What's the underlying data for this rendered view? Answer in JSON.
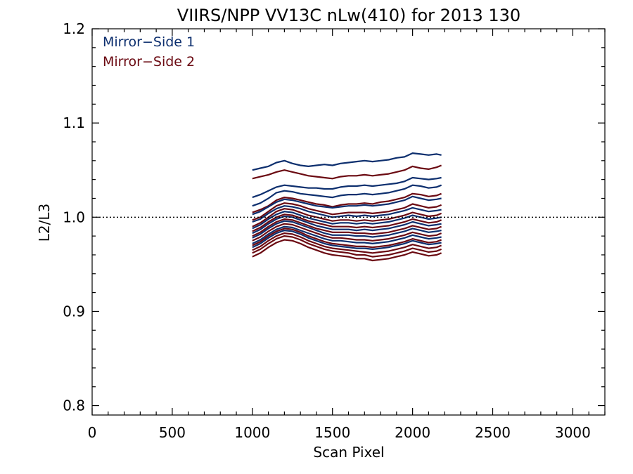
{
  "chart_data": {
    "type": "line",
    "title": "VIIRS/NPP VV13C nLw(410) for 2013 130",
    "xlabel": "Scan Pixel",
    "ylabel": "L2/L3",
    "xlim": [
      0,
      3200
    ],
    "ylim": [
      0.79,
      1.2
    ],
    "x_ticks": [
      "0",
      "500",
      "1000",
      "1500",
      "2000",
      "2500",
      "3000"
    ],
    "y_ticks": [
      "0.8",
      "0.9",
      "1.0",
      "1.1",
      "1.2"
    ],
    "reference_line": {
      "y": 1.0,
      "style": "dotted"
    },
    "legend": {
      "placement": "top-left",
      "entries": [
        {
          "label": "Mirror−Side 1",
          "color": "#0d2f6e"
        },
        {
          "label": "Mirror−Side 2",
          "color": "#6b0a12"
        }
      ]
    },
    "x": [
      1000,
      1050,
      1100,
      1150,
      1200,
      1250,
      1300,
      1350,
      1400,
      1450,
      1500,
      1550,
      1600,
      1650,
      1700,
      1750,
      1800,
      1850,
      1900,
      1950,
      2000,
      2050,
      2100,
      2150,
      2180
    ],
    "series": [
      {
        "group": 1,
        "values": [
          1.05,
          1.052,
          1.054,
          1.058,
          1.06,
          1.057,
          1.055,
          1.054,
          1.055,
          1.056,
          1.055,
          1.057,
          1.058,
          1.059,
          1.06,
          1.059,
          1.06,
          1.061,
          1.063,
          1.064,
          1.068,
          1.067,
          1.066,
          1.067,
          1.066
        ]
      },
      {
        "group": 2,
        "values": [
          1.041,
          1.043,
          1.045,
          1.048,
          1.05,
          1.048,
          1.046,
          1.044,
          1.043,
          1.042,
          1.041,
          1.043,
          1.044,
          1.044,
          1.045,
          1.044,
          1.045,
          1.046,
          1.048,
          1.05,
          1.054,
          1.052,
          1.051,
          1.053,
          1.055
        ]
      },
      {
        "group": 1,
        "values": [
          1.021,
          1.024,
          1.028,
          1.032,
          1.034,
          1.033,
          1.032,
          1.031,
          1.031,
          1.03,
          1.03,
          1.032,
          1.033,
          1.033,
          1.034,
          1.033,
          1.034,
          1.035,
          1.036,
          1.038,
          1.042,
          1.041,
          1.04,
          1.041,
          1.042
        ]
      },
      {
        "group": 1,
        "values": [
          1.012,
          1.015,
          1.02,
          1.026,
          1.028,
          1.027,
          1.025,
          1.024,
          1.023,
          1.022,
          1.021,
          1.023,
          1.024,
          1.024,
          1.025,
          1.024,
          1.025,
          1.026,
          1.028,
          1.03,
          1.034,
          1.033,
          1.031,
          1.032,
          1.034
        ]
      },
      {
        "group": 2,
        "values": [
          1.005,
          1.008,
          1.012,
          1.018,
          1.021,
          1.02,
          1.018,
          1.016,
          1.014,
          1.013,
          1.011,
          1.013,
          1.014,
          1.014,
          1.015,
          1.014,
          1.016,
          1.017,
          1.019,
          1.021,
          1.025,
          1.024,
          1.022,
          1.023,
          1.025
        ]
      },
      {
        "group": 1,
        "values": [
          1.003,
          1.006,
          1.011,
          1.016,
          1.019,
          1.018,
          1.016,
          1.014,
          1.012,
          1.011,
          1.01,
          1.011,
          1.012,
          1.012,
          1.013,
          1.012,
          1.013,
          1.014,
          1.016,
          1.018,
          1.022,
          1.02,
          1.018,
          1.019,
          1.02
        ]
      },
      {
        "group": 2,
        "values": [
          0.997,
          1.0,
          1.006,
          1.012,
          1.015,
          1.014,
          1.012,
          1.009,
          1.007,
          1.005,
          1.003,
          1.004,
          1.005,
          1.005,
          1.005,
          1.004,
          1.005,
          1.006,
          1.008,
          1.01,
          1.014,
          1.012,
          1.01,
          1.011,
          1.013
        ]
      },
      {
        "group": 1,
        "values": [
          0.995,
          0.998,
          1.004,
          1.009,
          1.012,
          1.011,
          1.009,
          1.006,
          1.004,
          1.002,
          1.0,
          1.001,
          1.002,
          1.001,
          1.002,
          1.001,
          1.002,
          1.003,
          1.005,
          1.007,
          1.01,
          1.008,
          1.006,
          1.007,
          1.008
        ]
      },
      {
        "group": 2,
        "values": [
          0.99,
          0.994,
          1.0,
          1.006,
          1.009,
          1.008,
          1.005,
          1.002,
          1.0,
          0.998,
          0.996,
          0.997,
          0.997,
          0.996,
          0.997,
          0.996,
          0.997,
          0.998,
          1.0,
          1.002,
          1.005,
          1.003,
          1.001,
          1.002,
          1.004
        ]
      },
      {
        "group": 1,
        "values": [
          0.988,
          0.992,
          0.998,
          1.003,
          1.006,
          1.005,
          1.002,
          0.999,
          0.997,
          0.995,
          0.993,
          0.994,
          0.994,
          0.993,
          0.994,
          0.993,
          0.994,
          0.995,
          0.997,
          0.999,
          1.002,
          1.0,
          0.998,
          0.999,
          1.0
        ]
      },
      {
        "group": 2,
        "values": [
          0.985,
          0.989,
          0.995,
          1.0,
          1.003,
          1.002,
          0.999,
          0.996,
          0.994,
          0.992,
          0.99,
          0.99,
          0.99,
          0.989,
          0.99,
          0.989,
          0.99,
          0.991,
          0.993,
          0.995,
          0.998,
          0.996,
          0.994,
          0.995,
          0.997
        ]
      },
      {
        "group": 1,
        "values": [
          0.983,
          0.987,
          0.993,
          0.998,
          1.001,
          1.0,
          0.997,
          0.994,
          0.991,
          0.989,
          0.987,
          0.987,
          0.987,
          0.986,
          0.987,
          0.986,
          0.987,
          0.988,
          0.99,
          0.992,
          0.995,
          0.993,
          0.991,
          0.992,
          0.993
        ]
      },
      {
        "group": 2,
        "values": [
          0.98,
          0.984,
          0.99,
          0.995,
          0.998,
          0.997,
          0.994,
          0.991,
          0.988,
          0.986,
          0.984,
          0.984,
          0.984,
          0.983,
          0.983,
          0.982,
          0.983,
          0.984,
          0.986,
          0.988,
          0.991,
          0.989,
          0.987,
          0.988,
          0.99
        ]
      },
      {
        "group": 1,
        "values": [
          0.978,
          0.982,
          0.988,
          0.993,
          0.996,
          0.995,
          0.992,
          0.989,
          0.986,
          0.983,
          0.981,
          0.981,
          0.981,
          0.98,
          0.98,
          0.979,
          0.98,
          0.981,
          0.983,
          0.985,
          0.988,
          0.986,
          0.984,
          0.985,
          0.986
        ]
      },
      {
        "group": 2,
        "values": [
          0.975,
          0.979,
          0.985,
          0.99,
          0.993,
          0.992,
          0.989,
          0.986,
          0.983,
          0.98,
          0.978,
          0.978,
          0.977,
          0.976,
          0.976,
          0.975,
          0.976,
          0.977,
          0.979,
          0.981,
          0.984,
          0.982,
          0.98,
          0.981,
          0.983
        ]
      },
      {
        "group": 1,
        "values": [
          0.972,
          0.976,
          0.982,
          0.987,
          0.99,
          0.989,
          0.986,
          0.983,
          0.98,
          0.977,
          0.975,
          0.975,
          0.974,
          0.973,
          0.973,
          0.972,
          0.973,
          0.974,
          0.976,
          0.978,
          0.981,
          0.979,
          0.977,
          0.978,
          0.979
        ]
      },
      {
        "group": 2,
        "values": [
          0.97,
          0.974,
          0.98,
          0.985,
          0.988,
          0.987,
          0.984,
          0.98,
          0.977,
          0.974,
          0.972,
          0.971,
          0.97,
          0.969,
          0.969,
          0.968,
          0.969,
          0.97,
          0.972,
          0.974,
          0.977,
          0.975,
          0.973,
          0.974,
          0.976
        ]
      },
      {
        "group": 1,
        "values": [
          0.968,
          0.972,
          0.978,
          0.983,
          0.986,
          0.985,
          0.982,
          0.978,
          0.975,
          0.972,
          0.97,
          0.969,
          0.968,
          0.967,
          0.967,
          0.966,
          0.967,
          0.968,
          0.97,
          0.972,
          0.975,
          0.973,
          0.971,
          0.972,
          0.973
        ]
      },
      {
        "group": 2,
        "values": [
          0.965,
          0.969,
          0.975,
          0.98,
          0.983,
          0.982,
          0.979,
          0.975,
          0.972,
          0.969,
          0.967,
          0.966,
          0.965,
          0.964,
          0.963,
          0.962,
          0.963,
          0.964,
          0.966,
          0.968,
          0.971,
          0.969,
          0.967,
          0.968,
          0.97
        ]
      },
      {
        "group": 2,
        "values": [
          0.962,
          0.966,
          0.972,
          0.977,
          0.98,
          0.979,
          0.976,
          0.972,
          0.969,
          0.966,
          0.964,
          0.963,
          0.962,
          0.96,
          0.96,
          0.958,
          0.959,
          0.96,
          0.962,
          0.964,
          0.967,
          0.965,
          0.963,
          0.964,
          0.966
        ]
      },
      {
        "group": 2,
        "values": [
          0.958,
          0.962,
          0.968,
          0.973,
          0.976,
          0.975,
          0.972,
          0.968,
          0.965,
          0.962,
          0.96,
          0.959,
          0.958,
          0.956,
          0.956,
          0.954,
          0.955,
          0.956,
          0.958,
          0.96,
          0.963,
          0.961,
          0.959,
          0.96,
          0.962
        ]
      }
    ]
  }
}
